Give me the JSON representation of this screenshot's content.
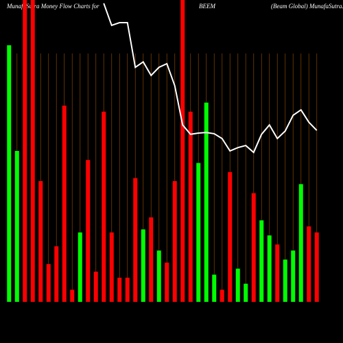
{
  "chart_data": {
    "type": "bar",
    "title": "MunafaSutra  Money Flow  Charts for",
    "ticker": "BEEM",
    "subtitle": "(Beam Global) MunafaSutra.com",
    "categories": [
      null,
      null,
      null,
      null,
      null,
      null,
      null,
      null,
      null,
      null,
      null,
      null,
      null,
      null,
      null,
      null,
      null,
      null,
      null,
      null,
      null,
      null,
      null,
      null,
      null,
      null,
      null,
      null,
      null,
      null,
      null,
      null,
      null,
      null,
      null,
      null,
      null,
      null,
      null,
      null
    ],
    "values": [
      85,
      50,
      100,
      100,
      40,
      12.5,
      18.4,
      65,
      4,
      23,
      47,
      10,
      63,
      23,
      8,
      8,
      41,
      24,
      28,
      17,
      13,
      40,
      100,
      63,
      46,
      66,
      9,
      4,
      43,
      11,
      6,
      36,
      27,
      22,
      19,
      14,
      17,
      39,
      25,
      23
    ],
    "colors": [
      "#00ff00",
      "#00ff00",
      "#ff0000",
      "#ff0000",
      "#ff0000",
      "#ff0000",
      "#ff0000",
      "#ff0000",
      "#ff0000",
      "#00ff00",
      "#ff0000",
      "#ff0000",
      "#ff0000",
      "#ff0000",
      "#ff0000",
      "#ff0000",
      "#ff0000",
      "#00ff00",
      "#ff0000",
      "#00ff00",
      "#ff0000",
      "#ff0000",
      "#ff0000",
      "#ff0000",
      "#00ff00",
      "#00ff00",
      "#00ff00",
      "#ff0000",
      "#ff0000",
      "#00ff00",
      "#00ff00",
      "#ff0000",
      "#00ff00",
      "#00ff00",
      "#ff0000",
      "#00ff00",
      "#00ff00",
      "#00ff00",
      "#ff0000",
      "#ff0000"
    ],
    "line_values": [
      null,
      null,
      null,
      null,
      null,
      null,
      null,
      null,
      null,
      null,
      null,
      null,
      98.9,
      91.6,
      92.5,
      92.5,
      77.7,
      79.5,
      75,
      77.7,
      78.9,
      71.6,
      58.6,
      55.5,
      55.9,
      56.1,
      55.7,
      54.1,
      50,
      51.1,
      51.8,
      49.5,
      55.5,
      58.6,
      54.1,
      56.6,
      61.8,
      63.6,
      59.5,
      56.8
    ],
    "line_color": "#ffffff",
    "ylim": [
      0,
      100
    ]
  }
}
